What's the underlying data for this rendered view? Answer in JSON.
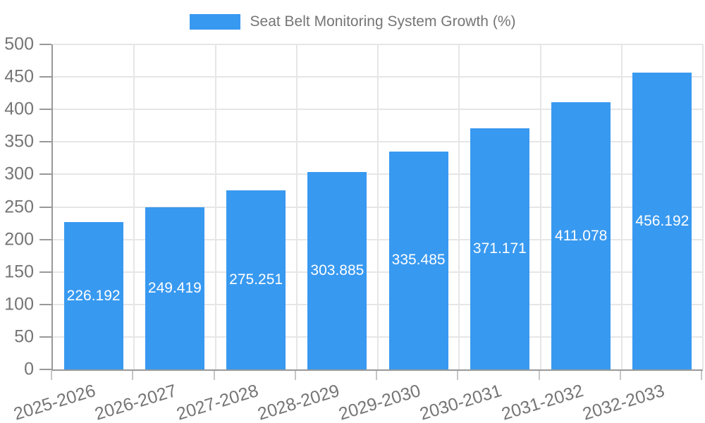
{
  "legend": {
    "label": "Seat Belt Monitoring System Growth (%)"
  },
  "chart_data": {
    "type": "bar",
    "title": "Seat Belt Monitoring System Growth (%)",
    "categories": [
      "2025-2026",
      "2026-2027",
      "2027-2028",
      "2028-2029",
      "2029-2030",
      "2030-2031",
      "2031-2032",
      "2032-2033"
    ],
    "series": [
      {
        "name": "Seat Belt Monitoring System Growth (%)",
        "values": [
          226.192,
          249.419,
          275.251,
          303.885,
          335.485,
          371.171,
          411.078,
          456.192
        ]
      }
    ],
    "value_labels": [
      "226.192",
      "249.419",
      "275.251",
      "303.885",
      "335.485",
      "371.171",
      "411.078",
      "456.192"
    ],
    "xlabel": "",
    "ylabel": "",
    "ylim": [
      0,
      500
    ],
    "ytick_step": 50,
    "ytick_labels": [
      "0",
      "50",
      "100",
      "150",
      "200",
      "250",
      "300",
      "350",
      "400",
      "450",
      "500"
    ],
    "grid": true,
    "legend_position": "top",
    "colors": {
      "bar": "#3899f0",
      "grid": "#e6e6e6",
      "axis": "#999999",
      "xtick": "#c6c6c6",
      "text": "#757575",
      "value_label": "#ffffff"
    }
  }
}
